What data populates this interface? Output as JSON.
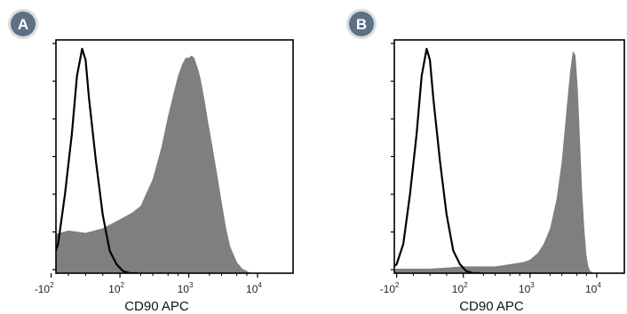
{
  "colors": {
    "badge_fill": "#5e7183",
    "badge_ring": "#d7dde3",
    "histogram_fill": "#7f7f7f",
    "control_line": "#000000",
    "axes": "#000000"
  },
  "chart_data": [
    {
      "type": "area",
      "panel_label": "A",
      "xlabel": "CD90 APC",
      "ylabel": "",
      "x_scale": "biexponential",
      "x_tick_labels": [
        {
          "base": "-10",
          "exp": "2",
          "value": -100
        },
        {
          "base": "10",
          "exp": "2",
          "value": 100
        },
        {
          "base": "10",
          "exp": "3",
          "value": 1000
        },
        {
          "base": "10",
          "exp": "4",
          "value": 10000
        }
      ],
      "ylim": [
        0,
        1
      ],
      "y_tick_count": 7,
      "grid": false,
      "series": [
        {
          "style": "filled",
          "x": [
            -220,
            -150,
            -100,
            -50,
            0,
            50,
            100,
            150,
            200,
            300,
            400,
            500,
            600,
            700,
            800,
            900,
            1000,
            1100,
            1200,
            1300,
            1400,
            1500,
            1700,
            1900,
            2200,
            2500,
            3000,
            3500,
            4000,
            5000,
            6000,
            7000,
            8000
          ],
          "y": [
            0.04,
            0.13,
            0.17,
            0.19,
            0.18,
            0.2,
            0.24,
            0.27,
            0.3,
            0.42,
            0.56,
            0.7,
            0.8,
            0.88,
            0.93,
            0.96,
            0.96,
            0.97,
            0.96,
            0.93,
            0.9,
            0.86,
            0.77,
            0.68,
            0.57,
            0.47,
            0.32,
            0.2,
            0.12,
            0.05,
            0.02,
            0.01,
            0.0
          ]
        },
        {
          "style": "line",
          "x": [
            -200,
            -160,
            -130,
            -100,
            -80,
            -60,
            -40,
            -25,
            -10,
            0,
            10,
            30,
            50,
            70,
            90,
            110,
            140,
            180
          ],
          "y": [
            0.0,
            0.0,
            0.01,
            0.04,
            0.13,
            0.35,
            0.62,
            0.88,
            1.0,
            0.95,
            0.78,
            0.5,
            0.26,
            0.1,
            0.04,
            0.01,
            0.0,
            0.0
          ]
        }
      ]
    },
    {
      "type": "area",
      "panel_label": "B",
      "xlabel": "CD90 APC",
      "ylabel": "",
      "x_scale": "biexponential",
      "x_tick_labels": [
        {
          "base": "-10",
          "exp": "2",
          "value": -100
        },
        {
          "base": "10",
          "exp": "2",
          "value": 100
        },
        {
          "base": "10",
          "exp": "3",
          "value": 1000
        },
        {
          "base": "10",
          "exp": "4",
          "value": 10000
        }
      ],
      "ylim": [
        0,
        1
      ],
      "y_tick_count": 7,
      "grid": false,
      "series": [
        {
          "style": "filled",
          "x": [
            -220,
            -100,
            0,
            100,
            200,
            300,
            500,
            800,
            1000,
            1300,
            1600,
            2000,
            2500,
            3000,
            3500,
            4000,
            4400,
            4800,
            5200,
            5600,
            6000,
            6500,
            7000,
            7500,
            8000,
            9000
          ],
          "y": [
            0.02,
            0.02,
            0.02,
            0.03,
            0.03,
            0.03,
            0.04,
            0.05,
            0.06,
            0.09,
            0.13,
            0.2,
            0.33,
            0.5,
            0.72,
            0.9,
            0.99,
            0.97,
            0.82,
            0.6,
            0.38,
            0.2,
            0.08,
            0.03,
            0.01,
            0.0
          ]
        },
        {
          "style": "line",
          "x": [
            -200,
            -160,
            -130,
            -100,
            -80,
            -60,
            -40,
            -25,
            -10,
            0,
            10,
            30,
            50,
            70,
            90,
            110,
            140,
            180
          ],
          "y": [
            0.0,
            0.0,
            0.01,
            0.04,
            0.13,
            0.35,
            0.62,
            0.88,
            1.0,
            0.95,
            0.78,
            0.5,
            0.26,
            0.1,
            0.04,
            0.01,
            0.0,
            0.0
          ]
        }
      ]
    }
  ]
}
